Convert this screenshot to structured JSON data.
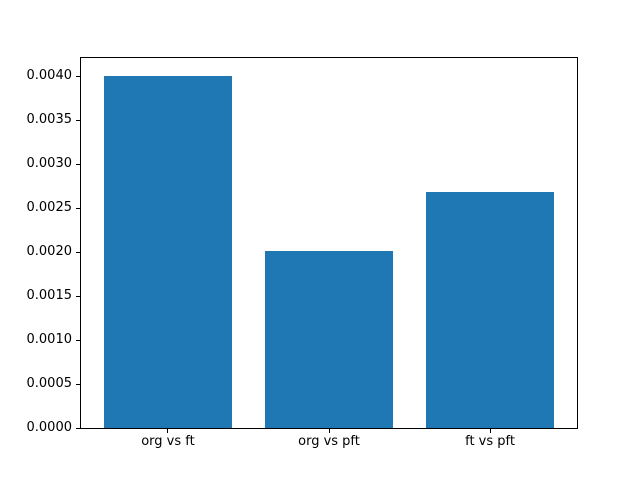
{
  "figure": {
    "background_color": "#ffffff",
    "bar_color": "#1f77b4",
    "spine_color": "#000000",
    "text_color": "#000000"
  },
  "chart_data": {
    "type": "bar",
    "categories": [
      "org vs ft",
      "org vs pft",
      "ft vs pft"
    ],
    "values": [
      0.00401,
      0.00201,
      0.00269
    ],
    "xlabel": "",
    "ylabel": "",
    "ylim": [
      0,
      0.00421
    ],
    "xlim": [
      -0.54,
      2.54
    ],
    "bar_width": 0.8,
    "y_ticks": [
      0.0,
      0.0005,
      0.001,
      0.0015,
      0.002,
      0.0025,
      0.003,
      0.0035,
      0.004
    ],
    "y_tick_labels": [
      "0.0000",
      "0.0005",
      "0.0010",
      "0.0015",
      "0.0020",
      "0.0025",
      "0.0030",
      "0.0035",
      "0.0040"
    ],
    "grid": false,
    "legend": null
  }
}
